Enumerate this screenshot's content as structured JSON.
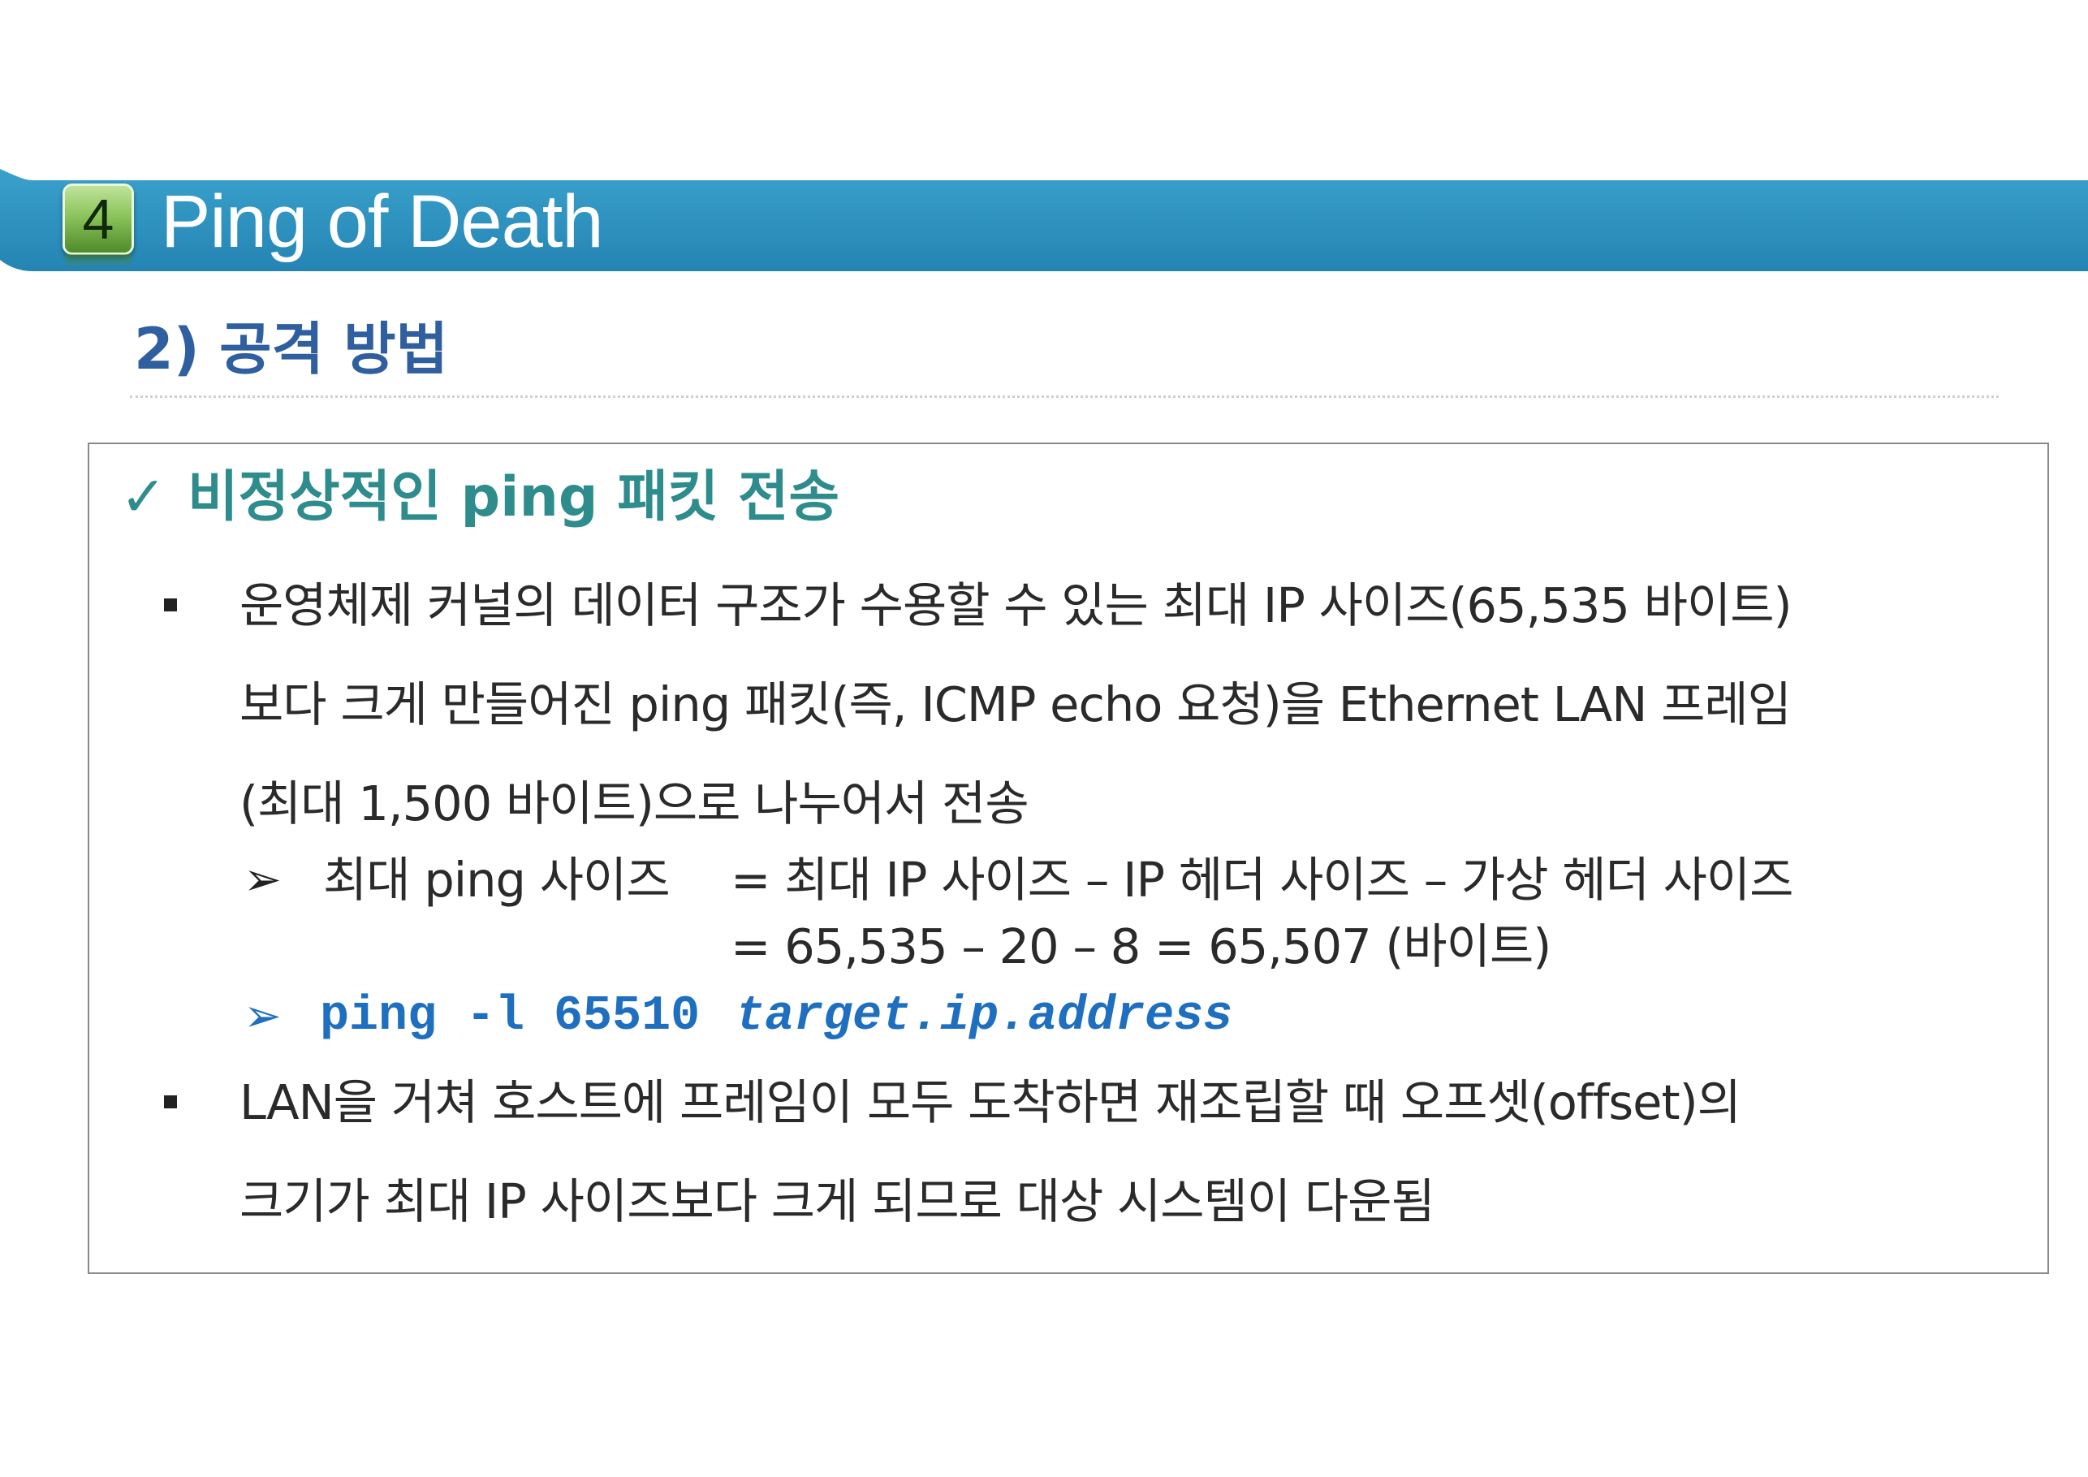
{
  "header": {
    "number": "4",
    "title": "Ping of Death",
    "bar_color": "#2a8fbd"
  },
  "section": {
    "title": "2) 공격 방법"
  },
  "content": {
    "heading_check": "✓",
    "heading": "비정상적인 ping 패킷 전송",
    "bullet1": {
      "lines": [
        "운영체제 커널의 데이터 구조가 수용할 수 있는 최대 IP 사이즈(65,535 바이트)",
        "보다 크게 만들어진 ping 패킷(즉, ICMP echo 요청)을 Ethernet LAN 프레임",
        "(최대 1,500 바이트)으로 나누어서 전송"
      ]
    },
    "sub1": {
      "arrow": "➢",
      "label": "최대 ping 사이즈",
      "line1": "= 최대 IP 사이즈  –  IP 헤더 사이즈  –  가상 헤더 사이즈",
      "line2": "= 65,535  –  20  –  8 = 65,507 (바이트)"
    },
    "sub2": {
      "arrow": "➢",
      "command": "ping -l 65510",
      "target": "target.ip.address"
    },
    "bullet2": {
      "lines": [
        "LAN을 거쳐 호스트에 프레임이 모두 도착하면 재조립할 때 오프셋(offset)의",
        "크기가 최대 IP 사이즈보다 크게 되므로 대상 시스템이 다운됨"
      ]
    }
  }
}
